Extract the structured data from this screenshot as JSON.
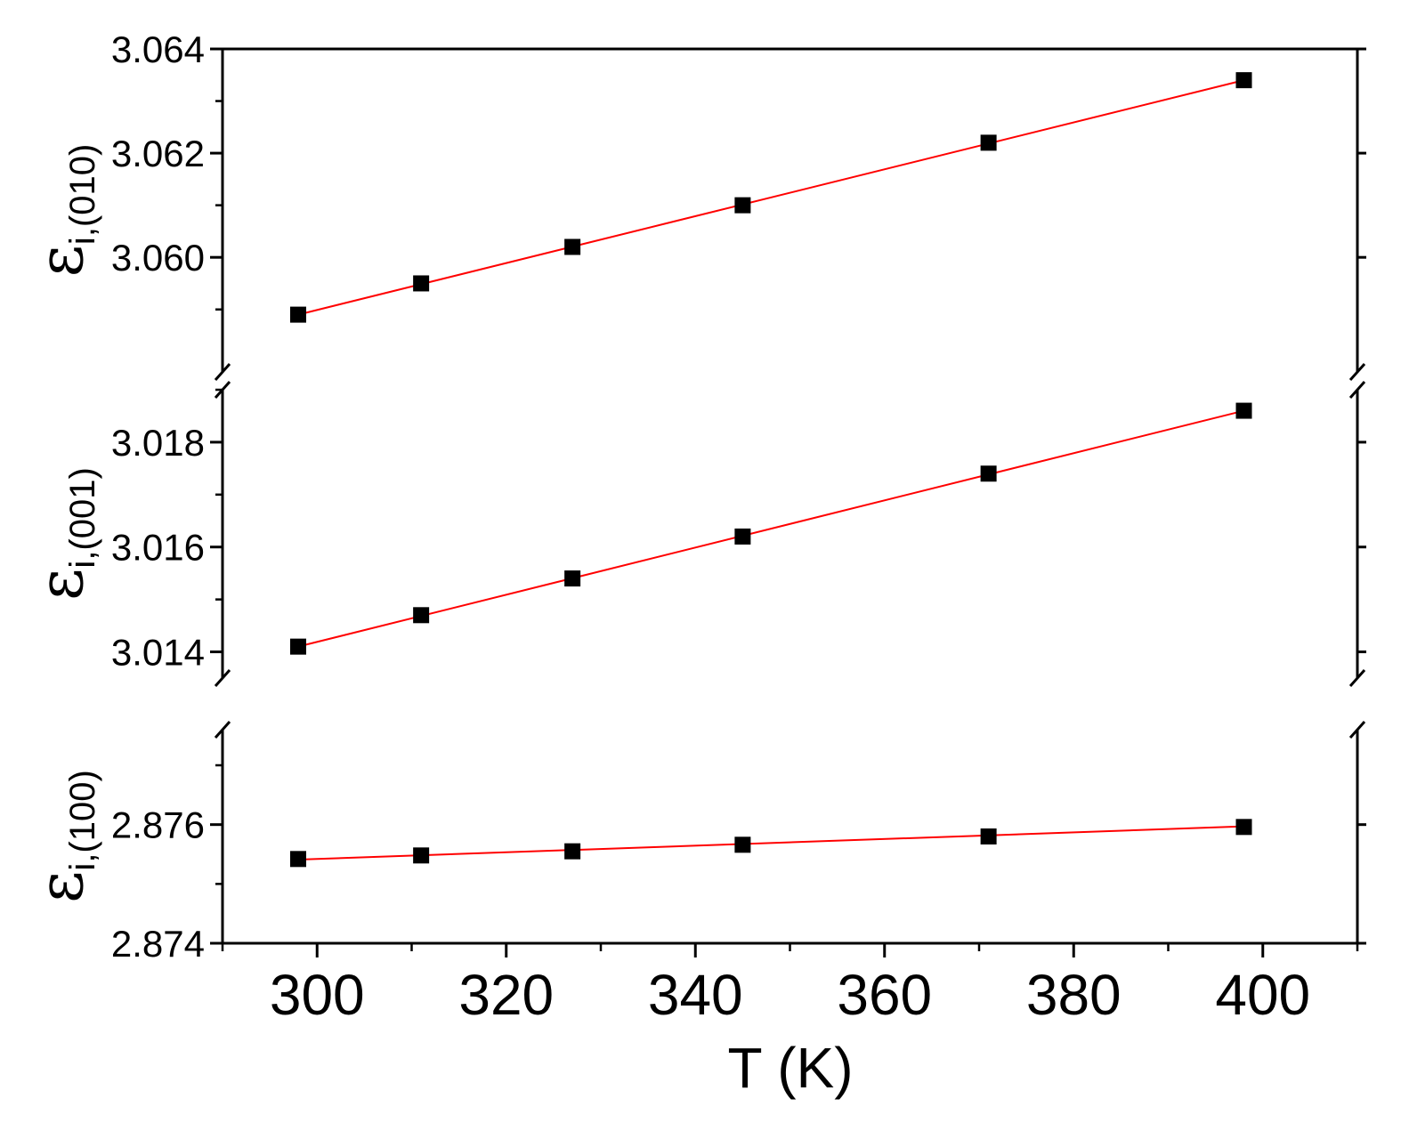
{
  "chart_data": {
    "type": "scatter",
    "title": "",
    "xlabel": "T (K)",
    "xlim": [
      290,
      410
    ],
    "x_ticks": [
      300,
      320,
      340,
      360,
      380,
      400
    ],
    "x_tick_labels": [
      "300",
      "320",
      "340",
      "360",
      "380",
      "400"
    ],
    "marker": "square",
    "marker_color": "#000000",
    "fit_line_color": "#ff0000",
    "grid": false,
    "legend": "none",
    "panels": [
      {
        "ylabel": "ε",
        "ylabel_subscript": "i,(010)",
        "ylim": [
          3.0578,
          3.064
        ],
        "y_ticks": [
          3.06,
          3.062,
          3.064
        ],
        "y_tick_labels": [
          "3.060",
          "3.062",
          "3.064"
        ],
        "axis_break": "bottom",
        "series": [
          {
            "x": [
              298,
              311,
              327,
              345,
              371,
              398
            ],
            "y": [
              3.0589,
              3.0595,
              3.0602,
              3.061,
              3.0622,
              3.0634
            ],
            "fit": [
              3.0589,
              3.0634
            ]
          }
        ]
      },
      {
        "ylabel": "ε",
        "ylabel_subscript": "i,(001)",
        "ylim": [
          3.0135,
          3.019
        ],
        "y_ticks": [
          3.014,
          3.016,
          3.018
        ],
        "y_tick_labels": [
          "3.014",
          "3.016",
          "3.018"
        ],
        "axis_break": "both",
        "series": [
          {
            "x": [
              298,
              311,
              327,
              345,
              371,
              398
            ],
            "y": [
              3.0141,
              3.0147,
              3.0154,
              3.0162,
              3.0174,
              3.0186
            ],
            "fit": [
              3.0141,
              3.0186
            ]
          }
        ]
      },
      {
        "ylabel": "ε",
        "ylabel_subscript": "i,(100)",
        "ylim": [
          2.874,
          2.8776
        ],
        "y_ticks": [
          2.874,
          2.876
        ],
        "y_tick_labels": [
          "2.874",
          "2.876"
        ],
        "axis_break": "top",
        "series": [
          {
            "x": [
              298,
              311,
              327,
              345,
              371,
              398
            ],
            "y": [
              2.87542,
              2.87548,
              2.87555,
              2.87566,
              2.8758,
              2.87596
            ],
            "fit": [
              2.87541,
              2.87597
            ]
          }
        ]
      }
    ]
  }
}
